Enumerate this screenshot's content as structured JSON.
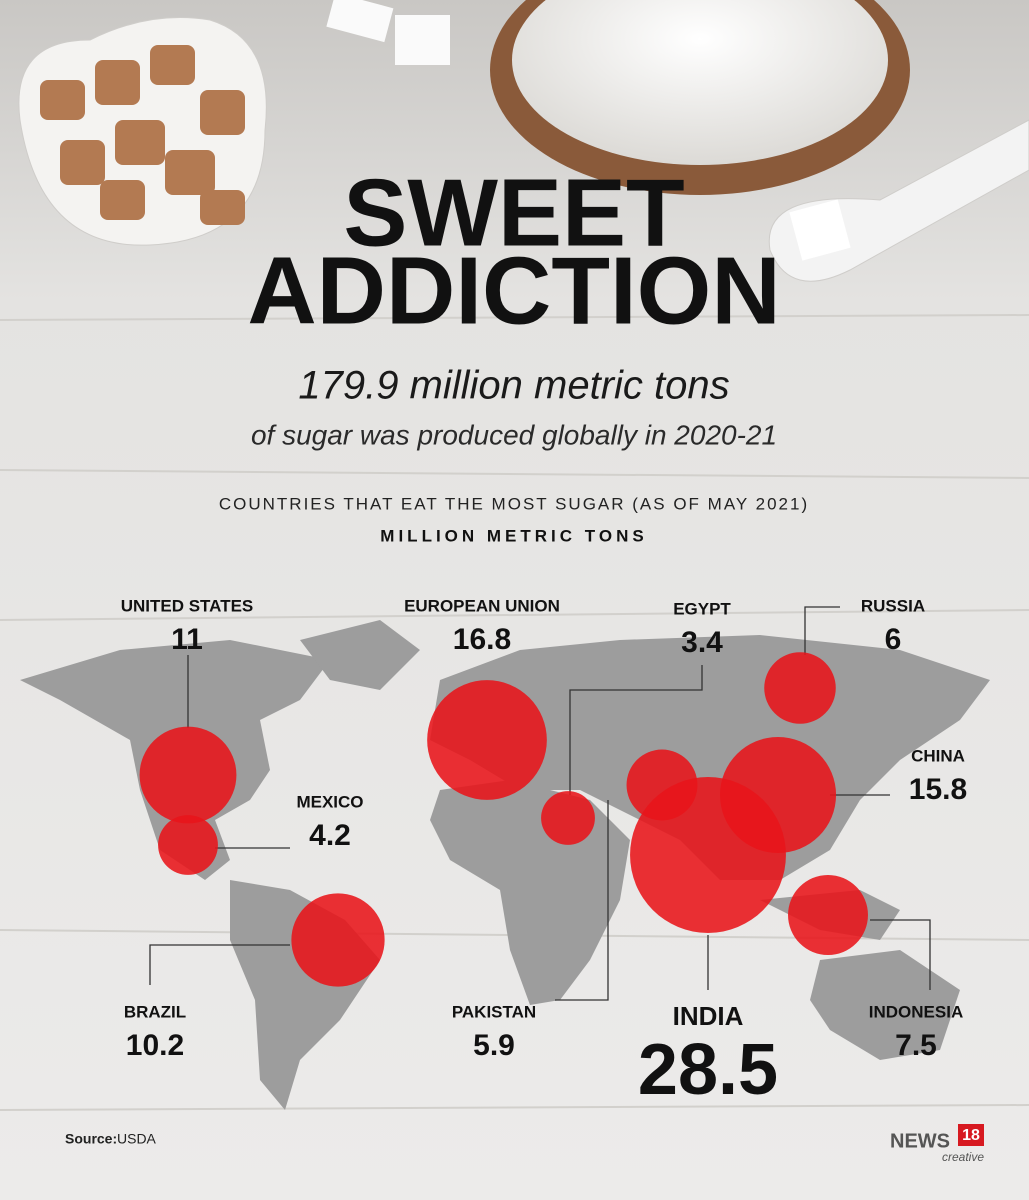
{
  "title": [
    "SWEET",
    "ADDICTION"
  ],
  "headline": "179.9 million metric tons",
  "subheadline": "of sugar was produced globally in 2020-21",
  "chart_data": {
    "type": "bubble",
    "title": "COUNTRIES THAT EAT THE MOST SUGAR (AS OF MAY 2021)",
    "subtitle": "MILLION METRIC TONS",
    "categories": [
      "UNITED STATES",
      "EUROPEAN UNION",
      "EGYPT",
      "RUSSIA",
      "MEXICO",
      "CHINA",
      "BRAZIL",
      "PAKISTAN",
      "INDIA",
      "INDONESIA"
    ],
    "values": [
      11,
      16.8,
      3.4,
      6,
      4.2,
      15.8,
      10.2,
      5.9,
      28.5,
      7.5
    ],
    "color": "#e8141a"
  },
  "source": {
    "label": "Source:",
    "text": "USDA"
  },
  "brand": {
    "name": "NEWS",
    "number": "18",
    "tag": "creative"
  }
}
